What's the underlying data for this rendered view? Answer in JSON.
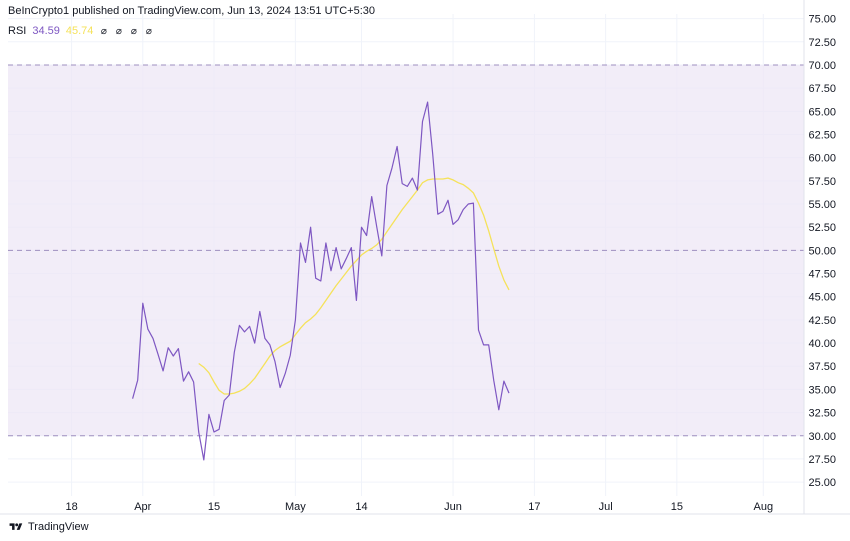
{
  "header": {
    "published": "BeInCrypto1 published on TradingView.com, Jun 13, 2024 13:51 UTC+5:30"
  },
  "legend": {
    "name": "RSI",
    "rsi_value": "34.59",
    "ma_value": "45.74",
    "icons": [
      "eye-slash-icon",
      "eye-slash-icon",
      "eye-slash-icon",
      "eye-slash-icon"
    ]
  },
  "footer": {
    "brand": "TradingView"
  },
  "colors": {
    "rsi_line": "#7e57c2",
    "ma_line": "#f5e25a",
    "band_fill": "#ede7f6",
    "band_lines": "#9e8fbf",
    "grid": "#f0f3fa"
  },
  "chart_data": {
    "type": "line",
    "ylim": [
      23.5,
      75.5
    ],
    "y_ticks": [
      "75.00",
      "72.50",
      "70.00",
      "67.50",
      "65.00",
      "62.50",
      "60.00",
      "57.50",
      "55.00",
      "52.50",
      "50.00",
      "47.50",
      "45.00",
      "42.50",
      "40.00",
      "37.50",
      "35.00",
      "32.50",
      "30.00",
      "27.50",
      "25.00"
    ],
    "x_ticks": [
      {
        "label": "18",
        "day": 0
      },
      {
        "label": "Apr",
        "day": 14
      },
      {
        "label": "15",
        "day": 28
      },
      {
        "label": "May",
        "day": 44
      },
      {
        "label": "14",
        "day": 57
      },
      {
        "label": "Jun",
        "day": 75
      },
      {
        "label": "17",
        "day": 91
      },
      {
        "label": "Jul",
        "day": 105
      },
      {
        "label": "15",
        "day": 119
      },
      {
        "label": "Aug",
        "day": 136
      }
    ],
    "xlim": [
      -12.5,
      144
    ],
    "bands": {
      "upper": 70,
      "middle": 50,
      "lower": 30
    },
    "series": [
      {
        "name": "RSI",
        "values": [
          [
            12,
            34
          ],
          [
            13,
            36
          ],
          [
            14,
            44.3
          ],
          [
            15,
            41.5
          ],
          [
            16,
            40.5
          ],
          [
            17,
            38.8
          ],
          [
            18,
            37
          ],
          [
            19,
            39.5
          ],
          [
            20,
            38.6
          ],
          [
            21,
            39.4
          ],
          [
            22,
            35.9
          ],
          [
            23,
            36.9
          ],
          [
            24,
            35.8
          ],
          [
            25,
            30.4
          ],
          [
            26,
            27.4
          ],
          [
            27,
            32.3
          ],
          [
            28,
            30.4
          ],
          [
            29,
            30.7
          ],
          [
            30,
            33.8
          ],
          [
            31,
            34.4
          ],
          [
            32,
            39
          ],
          [
            33,
            41.9
          ],
          [
            34,
            41.2
          ],
          [
            35,
            41.8
          ],
          [
            36,
            40
          ],
          [
            37,
            43.4
          ],
          [
            38,
            40.5
          ],
          [
            39,
            39.8
          ],
          [
            40,
            38
          ],
          [
            41,
            35.2
          ],
          [
            42,
            36.7
          ],
          [
            43,
            38.7
          ],
          [
            44,
            42.5
          ],
          [
            45,
            50.8
          ],
          [
            46,
            48.7
          ],
          [
            47,
            52.5
          ],
          [
            48,
            47
          ],
          [
            49,
            46.7
          ],
          [
            50,
            50.8
          ],
          [
            51,
            47.8
          ],
          [
            52,
            50.3
          ],
          [
            53,
            48
          ],
          [
            54,
            49.1
          ],
          [
            55,
            50.3
          ],
          [
            56,
            44.6
          ],
          [
            57,
            52.5
          ],
          [
            58,
            51.6
          ],
          [
            59,
            55.8
          ],
          [
            60,
            52.5
          ],
          [
            61,
            49.4
          ],
          [
            62,
            57
          ],
          [
            63,
            58.9
          ],
          [
            64,
            61.2
          ],
          [
            65,
            57.2
          ],
          [
            66,
            56.9
          ],
          [
            67,
            57.8
          ],
          [
            68,
            56.5
          ],
          [
            69,
            63.9
          ],
          [
            70,
            66
          ],
          [
            71,
            60.4
          ],
          [
            72,
            53.9
          ],
          [
            73,
            54.2
          ],
          [
            74,
            55.4
          ],
          [
            75,
            52.8
          ],
          [
            76,
            53.3
          ],
          [
            77,
            54.4
          ],
          [
            78,
            55
          ],
          [
            79,
            55.1
          ],
          [
            80,
            41.4
          ],
          [
            81,
            39.8
          ],
          [
            82,
            39.8
          ],
          [
            83,
            36
          ],
          [
            84,
            32.8
          ],
          [
            85,
            35.9
          ],
          [
            86,
            34.6
          ]
        ]
      },
      {
        "name": "RSI-based MA",
        "values": [
          [
            25,
            37.8
          ],
          [
            26,
            37.4
          ],
          [
            27,
            36.8
          ],
          [
            28,
            35.8
          ],
          [
            29,
            34.9
          ],
          [
            30,
            34.5
          ],
          [
            31,
            34.5
          ],
          [
            32,
            34.6
          ],
          [
            33,
            34.8
          ],
          [
            34,
            35.1
          ],
          [
            35,
            35.6
          ],
          [
            36,
            36.2
          ],
          [
            37,
            37
          ],
          [
            38,
            37.8
          ],
          [
            39,
            38.6
          ],
          [
            40,
            39.2
          ],
          [
            41,
            39.6
          ],
          [
            42,
            39.9
          ],
          [
            43,
            40.2
          ],
          [
            44,
            40.9
          ],
          [
            45,
            41.6
          ],
          [
            46,
            42.2
          ],
          [
            47,
            42.6
          ],
          [
            48,
            43.1
          ],
          [
            49,
            43.8
          ],
          [
            50,
            44.6
          ],
          [
            51,
            45.4
          ],
          [
            52,
            46.2
          ],
          [
            53,
            46.9
          ],
          [
            54,
            47.6
          ],
          [
            55,
            48.3
          ],
          [
            56,
            48.9
          ],
          [
            57,
            49.5
          ],
          [
            58,
            49.9
          ],
          [
            59,
            50.2
          ],
          [
            60,
            50.6
          ],
          [
            61,
            51.2
          ],
          [
            62,
            52
          ],
          [
            63,
            52.8
          ],
          [
            64,
            53.6
          ],
          [
            65,
            54.4
          ],
          [
            66,
            55.1
          ],
          [
            67,
            55.8
          ],
          [
            68,
            56.5
          ],
          [
            69,
            57.3
          ],
          [
            70,
            57.6
          ],
          [
            71,
            57.7
          ],
          [
            72,
            57.7
          ],
          [
            73,
            57.7
          ],
          [
            74,
            57.8
          ],
          [
            75,
            57.6
          ],
          [
            76,
            57.3
          ],
          [
            77,
            57.1
          ],
          [
            78,
            56.7
          ],
          [
            79,
            56.2
          ],
          [
            80,
            55.1
          ],
          [
            81,
            53.8
          ],
          [
            82,
            52.1
          ],
          [
            83,
            50.2
          ],
          [
            84,
            48.3
          ],
          [
            85,
            46.8
          ],
          [
            86,
            45.74
          ]
        ]
      }
    ]
  }
}
